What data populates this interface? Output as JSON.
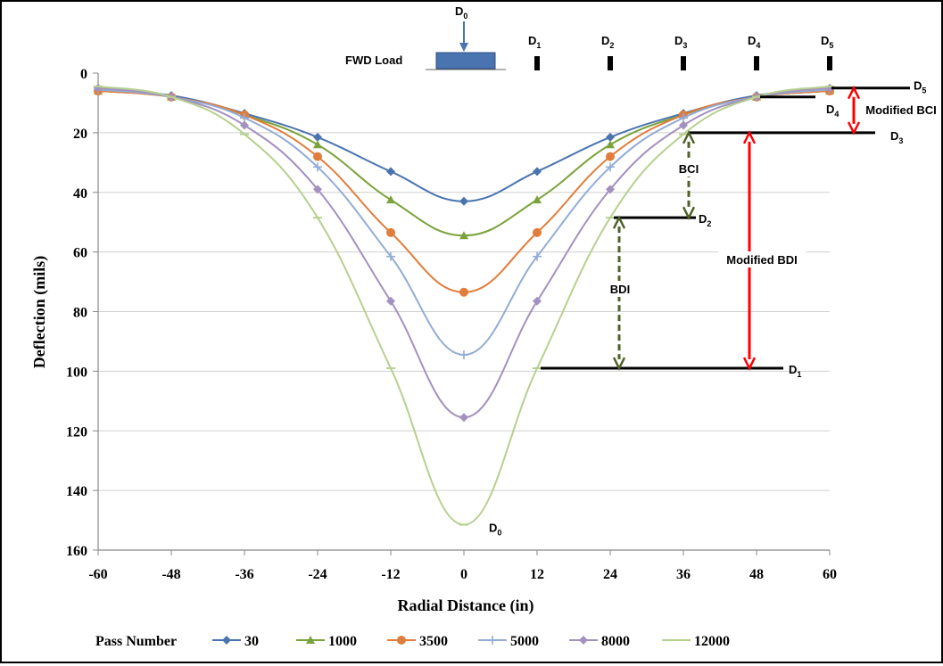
{
  "chart_data": {
    "type": "line",
    "xlabel": "Radial Distance (in)",
    "ylabel": "Deflection  (mils)",
    "xlim": [
      -60,
      60
    ],
    "ylim": [
      0,
      160
    ],
    "y_inverted": true,
    "x_ticks": [
      -60,
      -48,
      -36,
      -24,
      -12,
      0,
      12,
      24,
      36,
      48,
      60
    ],
    "y_ticks": [
      0,
      20,
      40,
      60,
      80,
      100,
      120,
      140,
      160
    ],
    "grid": "horizontal",
    "legend": {
      "title": "Pass Number",
      "placement": "bottom"
    },
    "x": [
      -60,
      -48,
      -36,
      -24,
      -12,
      0,
      12,
      24,
      36,
      48,
      60
    ],
    "series": [
      {
        "name": "30",
        "color": "#4a74b0",
        "marker": "diamond",
        "values": [
          5.5,
          7.5,
          13.5,
          21.5,
          33,
          43,
          33,
          21.5,
          13.5,
          7.5,
          5.5
        ]
      },
      {
        "name": "1000",
        "color": "#7aa33c",
        "marker": "triangle",
        "values": [
          6,
          8,
          14,
          24,
          42.5,
          54.5,
          42.5,
          24,
          14,
          8,
          6
        ]
      },
      {
        "name": "3500",
        "color": "#e07d3c",
        "marker": "circle",
        "values": [
          6,
          8,
          14,
          28,
          53.5,
          73.5,
          53.5,
          28,
          14,
          8,
          6
        ]
      },
      {
        "name": "5000",
        "color": "#92acd6",
        "marker": "plus",
        "values": [
          5.5,
          8,
          15,
          31.5,
          61.5,
          94.5,
          61.5,
          31.5,
          15,
          8,
          5.5
        ]
      },
      {
        "name": "8000",
        "color": "#a391bf",
        "marker": "diamond",
        "values": [
          5,
          8,
          17.5,
          39,
          76.5,
          115.5,
          76.5,
          39,
          17.5,
          8,
          5
        ]
      },
      {
        "name": "12000",
        "color": "#b7d08f",
        "marker": "dash",
        "values": [
          4.5,
          8,
          20.5,
          48.5,
          99,
          151.5,
          99,
          48.5,
          20.5,
          8,
          4.5
        ]
      }
    ],
    "annotations": {
      "load_label": "FWD Load",
      "d0_label": "D",
      "d0_sub": "0",
      "sensors": [
        {
          "label": "D",
          "sub": "1",
          "x": 12
        },
        {
          "label": "D",
          "sub": "2",
          "x": 24
        },
        {
          "label": "D",
          "sub": "3",
          "x": 36
        },
        {
          "label": "D",
          "sub": "4",
          "x": 48
        },
        {
          "label": "D",
          "sub": "5",
          "x": 60
        }
      ],
      "level_lines": [
        {
          "label": "D",
          "sub": "1",
          "y": 99
        },
        {
          "label": "D",
          "sub": "2",
          "y": 48.5
        },
        {
          "label": "D",
          "sub": "3",
          "y": 20
        },
        {
          "label": "D",
          "sub": "4",
          "y": 8
        },
        {
          "label": "D",
          "sub": "5",
          "y": 5
        }
      ],
      "bdi": {
        "label": "BDI",
        "from": 99,
        "to": 48.5,
        "color": "#4f6228"
      },
      "bci": {
        "label": "BCI",
        "from": 48.5,
        "to": 20,
        "color": "#4f6228"
      },
      "modified_bdi": {
        "label": "Modified BDI",
        "from": 99,
        "to": 20,
        "color": "#ff0000"
      },
      "modified_bci": {
        "label": "Modified BCI",
        "from": 20,
        "to": 5,
        "color": "#ff0000"
      },
      "peak_label": "D",
      "peak_sub": "0"
    }
  }
}
